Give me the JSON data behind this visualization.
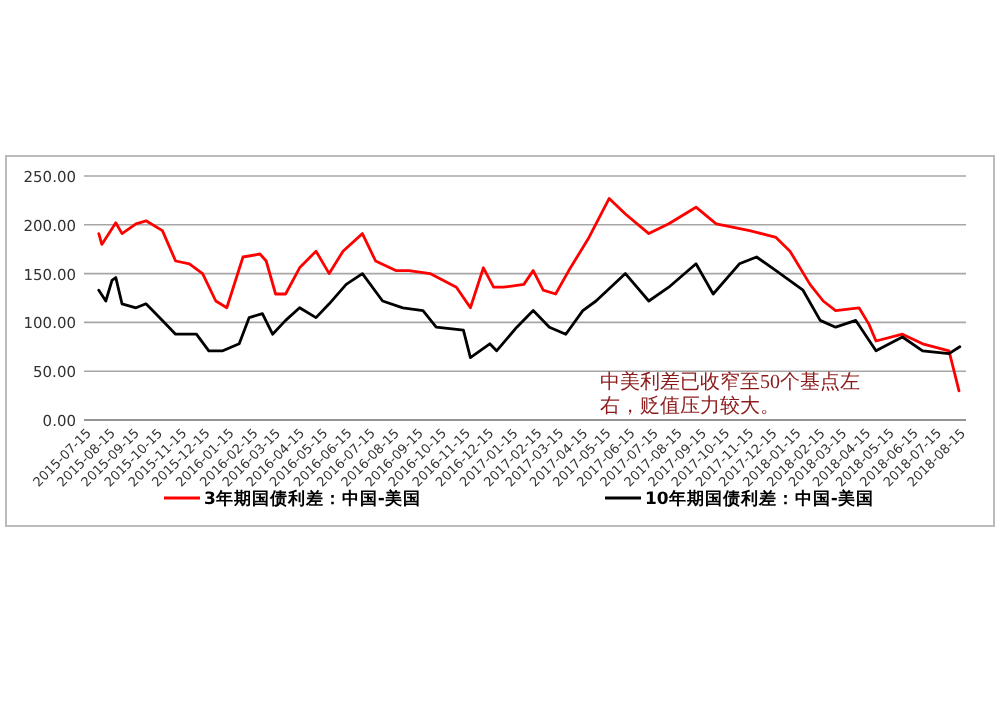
{
  "chart_data": {
    "type": "line",
    "xlim": [
      "2015-07-10",
      "2018-08-20"
    ],
    "xticks": [
      "2015-07-15",
      "2015-08-15",
      "2015-09-15",
      "2015-10-15",
      "2015-11-15",
      "2015-12-15",
      "2016-01-15",
      "2016-02-15",
      "2016-03-15",
      "2016-04-15",
      "2016-05-15",
      "2016-06-15",
      "2016-07-15",
      "2016-08-15",
      "2016-09-15",
      "2016-10-15",
      "2016-11-15",
      "2016-12-15",
      "2017-01-15",
      "2017-02-15",
      "2017-03-15",
      "2017-04-15",
      "2017-05-15",
      "2017-06-15",
      "2017-07-15",
      "2017-08-15",
      "2017-09-15",
      "2017-10-15",
      "2017-11-15",
      "2017-12-15",
      "2018-01-15",
      "2018-02-15",
      "2018-03-15",
      "2018-04-15",
      "2018-05-15",
      "2018-06-15",
      "2018-07-15",
      "2018-08-15"
    ],
    "ylim": [
      0,
      250
    ],
    "yticks": [
      {
        "value": 0,
        "label": "0.00"
      },
      {
        "value": 50,
        "label": "50.00"
      },
      {
        "value": 100,
        "label": "100.00"
      },
      {
        "value": 150,
        "label": "150.00"
      },
      {
        "value": 200,
        "label": "200.00"
      },
      {
        "value": 250,
        "label": "250.00"
      }
    ],
    "grid": "y",
    "legend": "bottom",
    "series": [
      {
        "name": "3年期国债利差：中国-美国",
        "color": "#ff0000",
        "x": [
          "2015-07-29",
          "2015-08-02",
          "2015-08-20",
          "2015-08-28",
          "2015-09-15",
          "2015-09-28",
          "2015-10-19",
          "2015-11-05",
          "2015-11-23",
          "2015-12-10",
          "2015-12-27",
          "2016-01-10",
          "2016-01-31",
          "2016-02-22",
          "2016-03-01",
          "2016-03-13",
          "2016-03-26",
          "2016-04-13",
          "2016-05-04",
          "2016-05-21",
          "2016-06-08",
          "2016-07-03",
          "2016-07-20",
          "2016-08-15",
          "2016-09-01",
          "2016-09-28",
          "2016-11-01",
          "2016-11-19",
          "2016-12-06",
          "2016-12-19",
          "2017-01-01",
          "2017-01-27",
          "2017-02-08",
          "2017-02-21",
          "2017-03-09",
          "2017-03-26",
          "2017-04-21",
          "2017-05-17",
          "2017-06-07",
          "2017-07-07",
          "2017-08-02",
          "2017-09-06",
          "2017-10-02",
          "2017-11-14",
          "2017-12-18",
          "2018-01-05",
          "2018-01-31",
          "2018-02-17",
          "2018-03-05",
          "2018-04-04",
          "2018-04-17",
          "2018-04-26",
          "2018-05-30",
          "2018-06-25",
          "2018-07-29",
          "2018-08-11"
        ],
        "values": [
          191,
          180,
          202,
          191,
          201,
          204,
          194,
          163,
          160,
          150,
          122,
          115,
          167,
          170,
          163,
          129,
          129,
          156,
          173,
          150,
          173,
          191,
          163,
          153,
          153,
          150,
          136,
          115,
          156,
          136,
          136,
          139,
          153,
          133,
          129,
          153,
          187,
          227,
          211,
          191,
          201,
          218,
          201,
          194,
          187,
          173,
          139,
          122,
          112,
          115,
          98,
          81,
          88,
          78,
          71,
          30
        ]
      },
      {
        "name": "10年期国债利差：中国-美国",
        "color": "#000000",
        "x": [
          "2015-07-29",
          "2015-08-07",
          "2015-08-15",
          "2015-08-20",
          "2015-08-28",
          "2015-09-15",
          "2015-09-28",
          "2015-10-19",
          "2015-11-05",
          "2015-12-02",
          "2015-12-18",
          "2016-01-05",
          "2016-01-26",
          "2016-02-08",
          "2016-02-25",
          "2016-03-09",
          "2016-03-26",
          "2016-04-13",
          "2016-05-04",
          "2016-05-21",
          "2016-06-12",
          "2016-07-03",
          "2016-07-29",
          "2016-08-24",
          "2016-09-19",
          "2016-10-06",
          "2016-11-10",
          "2016-11-19",
          "2016-12-14",
          "2016-12-23",
          "2017-01-18",
          "2017-02-08",
          "2017-03-01",
          "2017-03-22",
          "2017-04-13",
          "2017-04-30",
          "2017-06-07",
          "2017-07-07",
          "2017-08-02",
          "2017-09-06",
          "2017-09-28",
          "2017-11-01",
          "2017-11-23",
          "2017-12-18",
          "2018-01-22",
          "2018-02-13",
          "2018-03-05",
          "2018-03-31",
          "2018-04-26",
          "2018-05-30",
          "2018-06-25",
          "2018-07-29",
          "2018-08-12"
        ],
        "values": [
          133,
          122,
          143,
          146,
          119,
          115,
          119,
          102,
          88,
          88,
          71,
          71,
          78,
          105,
          109,
          88,
          102,
          115,
          105,
          119,
          139,
          150,
          122,
          115,
          112,
          95,
          92,
          64,
          78,
          71,
          95,
          112,
          95,
          88,
          112,
          122,
          150,
          122,
          136,
          160,
          129,
          160,
          167,
          153,
          133,
          102,
          95,
          102,
          71,
          85,
          71,
          68,
          75
        ]
      }
    ],
    "annotations": [
      "中美利差已收窄至50个基点左右，贬值压力较大。"
    ]
  }
}
